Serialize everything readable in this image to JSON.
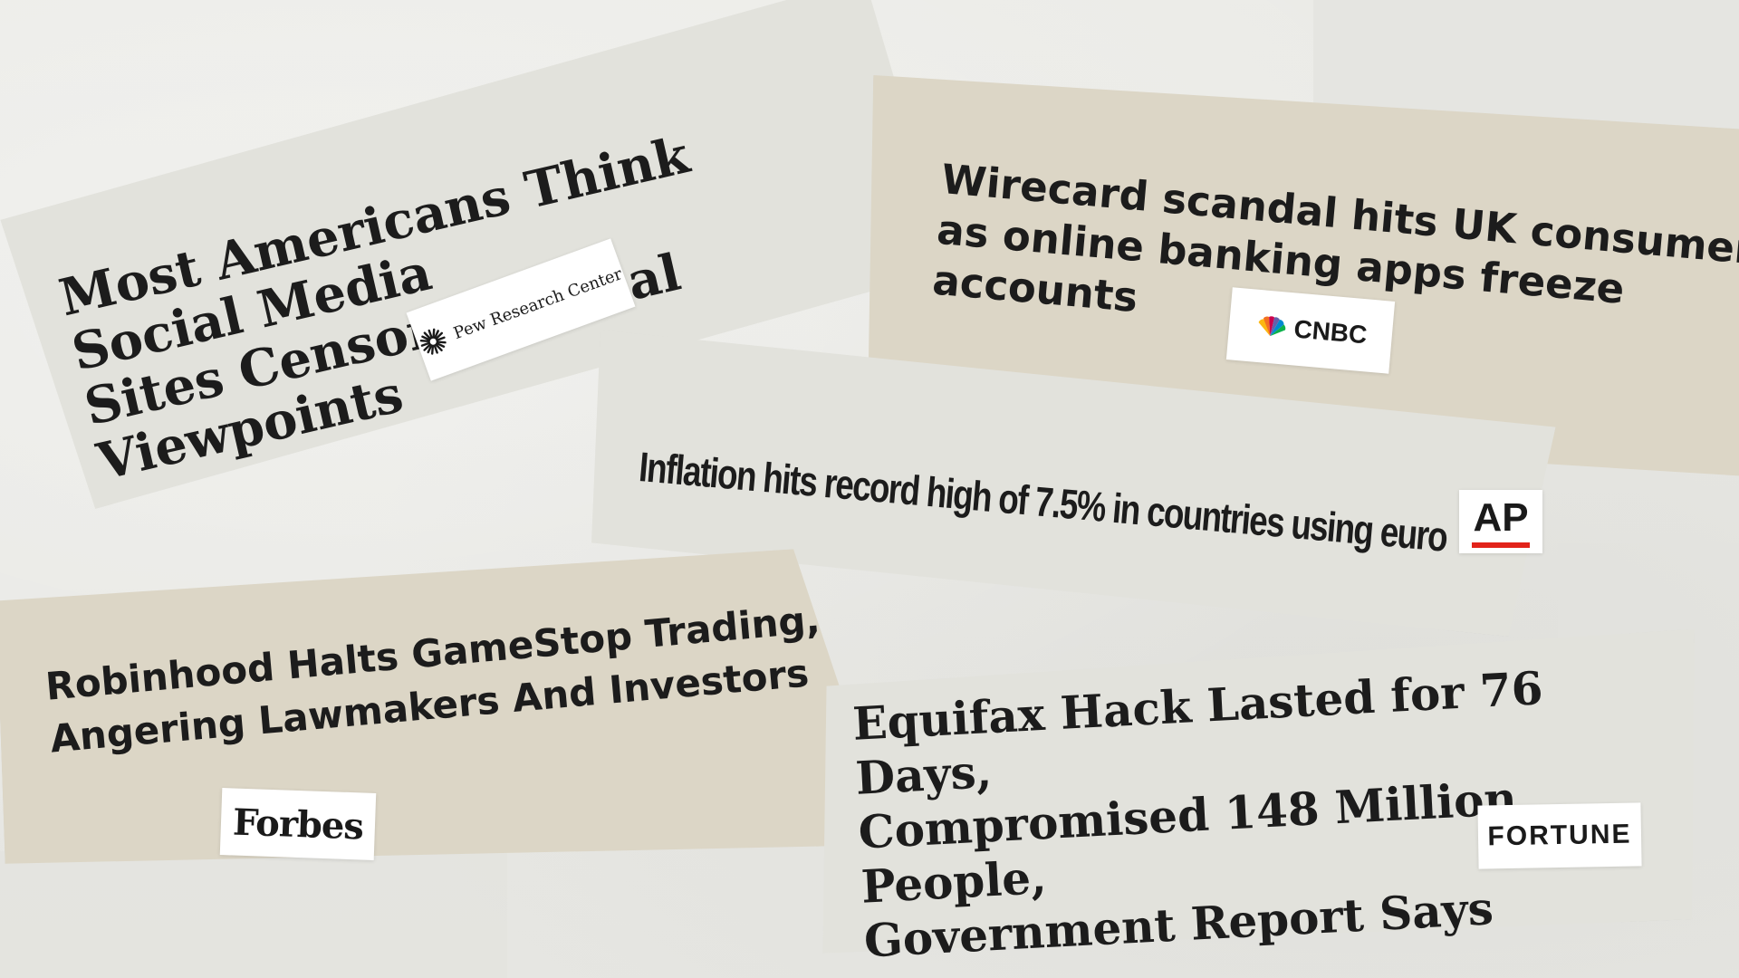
{
  "clippings": {
    "pew": {
      "headline": "Most Americans Think Social Media\nSites Censor Political Viewpoints",
      "source": "Pew Research Center",
      "icon": "sunburst-icon"
    },
    "cnbc": {
      "headline": "Wirecard scandal hits UK consumers\nas online banking apps freeze\naccounts",
      "source": "CNBC",
      "icon": "peacock-icon"
    },
    "ap": {
      "headline": "Inflation hits record high of 7.5% in countries using euro",
      "source": "AP",
      "accent_color": "#e2231a"
    },
    "forbes": {
      "headline": "Robinhood Halts GameStop Trading,\nAngering Lawmakers And Investors",
      "source": "Forbes"
    },
    "fortune": {
      "headline": "Equifax Hack Lasted for 76 Days,\nCompromised 148 Million People,\nGovernment Report Says",
      "source": "FORTUNE"
    }
  }
}
